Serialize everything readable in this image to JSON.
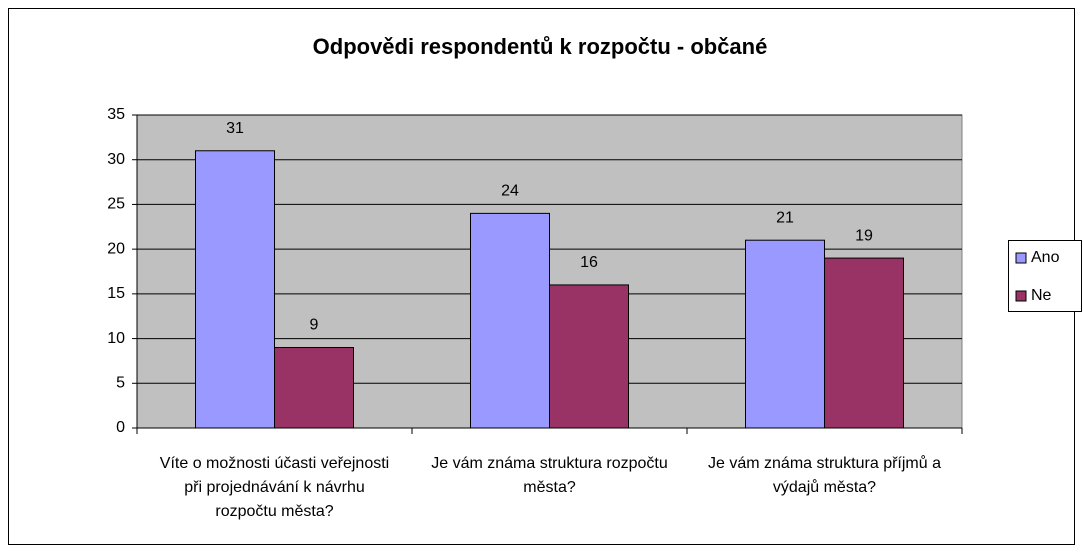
{
  "chart_data": {
    "type": "bar",
    "title": "Odpovědi respondentů k rozpočtu - občané",
    "categories": [
      "Víte o možnosti účasti veřejnosti při projednávání k návrhu rozpočtu města?",
      "Je vám známa struktura rozpočtu města?",
      "Je vám známa struktura příjmů a výdajů města?"
    ],
    "series": [
      {
        "name": "Ano",
        "color": "#9999ff",
        "values": [
          31,
          24,
          21
        ]
      },
      {
        "name": "Ne",
        "color": "#993366",
        "values": [
          9,
          16,
          19
        ]
      }
    ],
    "ylim": [
      0,
      35
    ],
    "yticks": [
      0,
      5,
      10,
      15,
      20,
      25,
      30,
      35
    ],
    "grid": true,
    "legend": "right"
  }
}
